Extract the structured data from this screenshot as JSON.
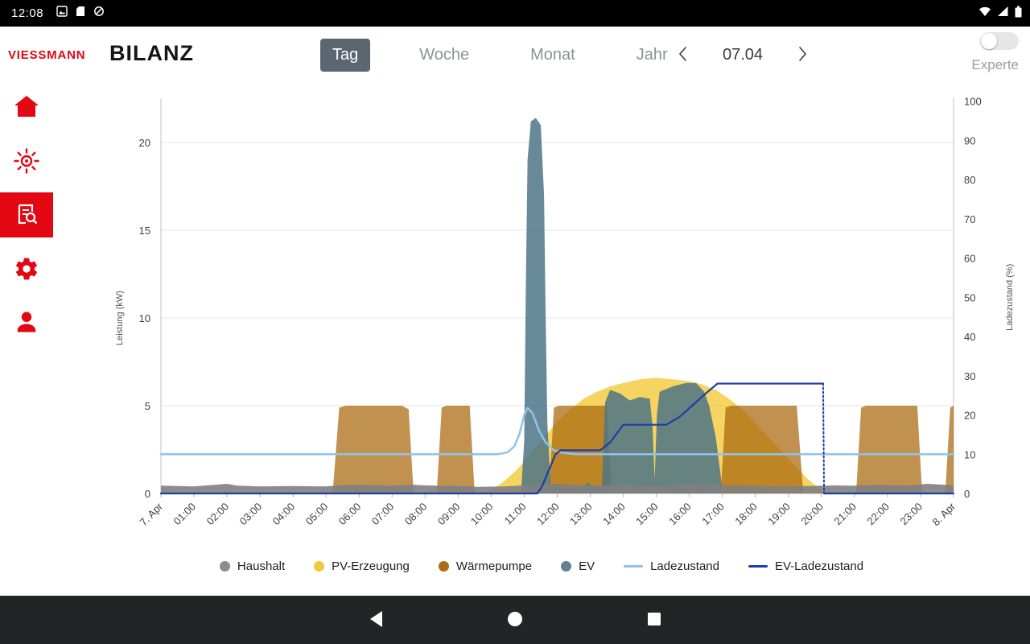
{
  "status_bar": {
    "time": "12:08",
    "left_icons": [
      "photo-icon",
      "sd-card-icon",
      "data-saver-icon"
    ],
    "right_icons": [
      "wifi-icon",
      "cellular-signal-icon",
      "battery-icon"
    ]
  },
  "header": {
    "logo_text": "VIESSMANN",
    "title": "BILANZ",
    "tabs": [
      {
        "label": "Tag",
        "selected": true
      },
      {
        "label": "Woche",
        "selected": false
      },
      {
        "label": "Monat",
        "selected": false
      },
      {
        "label": "Jahr",
        "selected": false
      }
    ],
    "date_nav": {
      "prev_icon": "chevron-left-icon",
      "date": "07.04",
      "next_icon": "chevron-right-icon"
    },
    "experte": {
      "label": "Experte",
      "enabled": false
    }
  },
  "sidebar": {
    "items": [
      {
        "name": "home",
        "selected": false
      },
      {
        "name": "solar",
        "selected": false
      },
      {
        "name": "reports",
        "selected": true
      },
      {
        "name": "settings",
        "selected": false
      },
      {
        "name": "profile",
        "selected": false
      }
    ]
  },
  "chart_data": {
    "type": "area",
    "title": "",
    "x_labels": [
      "7. Apr",
      "01:00",
      "02:00",
      "03:00",
      "04:00",
      "05:00",
      "06:00",
      "07:00",
      "08:00",
      "09:00",
      "10:00",
      "11:00",
      "12:00",
      "13:00",
      "14:00",
      "15:00",
      "16:00",
      "17:00",
      "18:00",
      "19:00",
      "20:00",
      "21:00",
      "22:00",
      "23:00",
      "8. Apr"
    ],
    "x_range_hours": [
      0,
      24
    ],
    "y_left": {
      "label": "Leistung (kW)",
      "ticks": [
        0,
        5,
        10,
        15,
        20
      ],
      "max": 22.5
    },
    "y_right": {
      "label": "Ladezustand (%)",
      "ticks": [
        0,
        10,
        20,
        30,
        40,
        50,
        60,
        70,
        80,
        90,
        100
      ],
      "max": 101
    },
    "grid": "horizontal-left-axis-only",
    "series": [
      {
        "name": "PV-Erzeugung",
        "unit": "kW",
        "axis": "left",
        "kind": "area",
        "color": "#f3c93a",
        "opacity": 0.8,
        "points": [
          [
            0,
            0
          ],
          [
            9.6,
            0
          ],
          [
            10,
            0.2
          ],
          [
            10.4,
            0.7
          ],
          [
            10.8,
            1.4
          ],
          [
            11.2,
            2.3
          ],
          [
            11.6,
            3.2
          ],
          [
            12,
            4.1
          ],
          [
            12.4,
            4.8
          ],
          [
            12.8,
            5.4
          ],
          [
            13.2,
            5.8
          ],
          [
            13.6,
            6.1
          ],
          [
            14,
            6.3
          ],
          [
            14.5,
            6.5
          ],
          [
            15,
            6.6
          ],
          [
            15.5,
            6.5
          ],
          [
            16,
            6.4
          ],
          [
            16.4,
            6.2
          ],
          [
            16.8,
            5.9
          ],
          [
            17.2,
            5.4
          ],
          [
            17.6,
            4.8
          ],
          [
            18,
            4.0
          ],
          [
            18.4,
            3.2
          ],
          [
            18.8,
            2.4
          ],
          [
            19.2,
            1.6
          ],
          [
            19.6,
            0.8
          ],
          [
            20,
            0.2
          ],
          [
            20.3,
            0
          ],
          [
            24,
            0
          ]
        ]
      },
      {
        "name": "Wärmepumpe",
        "unit": "kW",
        "axis": "left",
        "kind": "area",
        "color": "#a9660d",
        "opacity": 0.72,
        "points": [
          [
            0,
            0
          ],
          [
            5.2,
            0
          ],
          [
            5.4,
            4.9
          ],
          [
            5.6,
            5
          ],
          [
            7.3,
            5
          ],
          [
            7.5,
            4.8
          ],
          [
            7.65,
            0
          ],
          [
            8.35,
            0
          ],
          [
            8.5,
            4.9
          ],
          [
            8.65,
            5
          ],
          [
            9.35,
            5
          ],
          [
            9.5,
            0
          ],
          [
            11.75,
            0
          ],
          [
            11.9,
            4.9
          ],
          [
            12.05,
            5
          ],
          [
            13.5,
            5
          ],
          [
            13.65,
            0
          ],
          [
            16.95,
            0
          ],
          [
            17.1,
            4.9
          ],
          [
            17.25,
            5
          ],
          [
            19.25,
            5
          ],
          [
            19.45,
            0
          ],
          [
            21.05,
            0
          ],
          [
            21.2,
            4.9
          ],
          [
            21.35,
            5
          ],
          [
            22.9,
            5
          ],
          [
            23.05,
            0
          ],
          [
            23.75,
            0
          ],
          [
            23.9,
            4.9
          ],
          [
            24,
            5
          ]
        ]
      },
      {
        "name": "EV",
        "unit": "kW",
        "axis": "left",
        "kind": "area",
        "color": "#4e7486",
        "opacity": 0.85,
        "points": [
          [
            0,
            0
          ],
          [
            10.9,
            0
          ],
          [
            11.0,
            3
          ],
          [
            11.05,
            12
          ],
          [
            11.1,
            19
          ],
          [
            11.2,
            21.2
          ],
          [
            11.35,
            21.4
          ],
          [
            11.5,
            21.0
          ],
          [
            11.6,
            17
          ],
          [
            11.65,
            10
          ],
          [
            11.7,
            4
          ],
          [
            11.8,
            0.5
          ],
          [
            12.2,
            0.3
          ],
          [
            12.8,
            0.3
          ],
          [
            12.9,
            0.6
          ],
          [
            13.1,
            0.4
          ],
          [
            13.35,
            0.4
          ],
          [
            13.45,
            5.2
          ],
          [
            13.6,
            5.9
          ],
          [
            13.9,
            5.7
          ],
          [
            14.2,
            5.3
          ],
          [
            14.5,
            5.5
          ],
          [
            14.8,
            5.4
          ],
          [
            14.88,
            4
          ],
          [
            14.95,
            0.8
          ],
          [
            15.02,
            4.5
          ],
          [
            15.1,
            5.8
          ],
          [
            15.5,
            6.1
          ],
          [
            15.9,
            6.3
          ],
          [
            16.2,
            6.3
          ],
          [
            16.45,
            5.8
          ],
          [
            16.6,
            5.0
          ],
          [
            16.8,
            3.2
          ],
          [
            16.95,
            1.0
          ],
          [
            17.0,
            0
          ],
          [
            24,
            0
          ]
        ]
      },
      {
        "name": "Haushalt",
        "unit": "kW",
        "axis": "left",
        "kind": "area",
        "color": "#7f7f7f",
        "opacity": 0.9,
        "points": [
          [
            0,
            0.45
          ],
          [
            1,
            0.4
          ],
          [
            2,
            0.55
          ],
          [
            2.3,
            0.45
          ],
          [
            3,
            0.4
          ],
          [
            4,
            0.42
          ],
          [
            5,
            0.4
          ],
          [
            5.5,
            0.48
          ],
          [
            6,
            0.5
          ],
          [
            7,
            0.44
          ],
          [
            7.6,
            0.5
          ],
          [
            8,
            0.46
          ],
          [
            9,
            0.42
          ],
          [
            9.6,
            0.38
          ],
          [
            10.4,
            0.4
          ],
          [
            11,
            0.46
          ],
          [
            11.6,
            0.52
          ],
          [
            12,
            0.55
          ],
          [
            12.6,
            0.48
          ],
          [
            13.2,
            0.44
          ],
          [
            14,
            0.5
          ],
          [
            14.6,
            0.44
          ],
          [
            15.2,
            0.46
          ],
          [
            16,
            0.55
          ],
          [
            16.6,
            0.5
          ],
          [
            17.2,
            0.46
          ],
          [
            18,
            0.44
          ],
          [
            18.8,
            0.4
          ],
          [
            19.6,
            0.42
          ],
          [
            20.4,
            0.46
          ],
          [
            21,
            0.44
          ],
          [
            21.8,
            0.5
          ],
          [
            22.6,
            0.44
          ],
          [
            23.2,
            0.55
          ],
          [
            23.7,
            0.5
          ],
          [
            24,
            0.46
          ]
        ]
      },
      {
        "name": "Ladezustand",
        "unit": "%",
        "axis": "right",
        "kind": "line",
        "color": "#8fc3ec",
        "width": 2.5,
        "points": [
          [
            0,
            10
          ],
          [
            10.2,
            10
          ],
          [
            10.5,
            10.5
          ],
          [
            10.7,
            12
          ],
          [
            10.85,
            15
          ],
          [
            11.0,
            20
          ],
          [
            11.1,
            21.8
          ],
          [
            11.25,
            20.5
          ],
          [
            11.45,
            16
          ],
          [
            11.65,
            13
          ],
          [
            11.9,
            11
          ],
          [
            12.2,
            10.3
          ],
          [
            12.6,
            10
          ],
          [
            24,
            10
          ]
        ]
      },
      {
        "name": "EV-Ladezustand",
        "unit": "%",
        "axis": "right",
        "kind": "line",
        "color": "#1e3da5",
        "width": 2.2,
        "points": [
          [
            0,
            0
          ],
          [
            11.4,
            0
          ],
          [
            11.55,
            2
          ],
          [
            11.75,
            6
          ],
          [
            11.95,
            10
          ],
          [
            12.1,
            11
          ],
          [
            13.3,
            11
          ],
          [
            13.6,
            13
          ],
          [
            14.0,
            17.5
          ],
          [
            15.3,
            17.5
          ],
          [
            15.7,
            19.5
          ],
          [
            16.1,
            22.5
          ],
          [
            16.5,
            25.5
          ],
          [
            16.85,
            28
          ],
          [
            20.05,
            28
          ]
        ]
      },
      {
        "name": "EV-Ladezustand",
        "unit": "%",
        "axis": "right",
        "kind": "line",
        "color": "#1e3da5",
        "width": 2.0,
        "dash": "2 3",
        "points": [
          [
            20.05,
            28
          ],
          [
            20.08,
            0
          ]
        ]
      },
      {
        "name": "EV-Ladezustand",
        "unit": "%",
        "axis": "right",
        "kind": "line",
        "color": "#1e3da5",
        "width": 2.2,
        "points": [
          [
            20.08,
            0
          ],
          [
            24,
            0
          ]
        ]
      }
    ]
  },
  "legend": [
    {
      "label": "Haushalt",
      "color": "#8c8c8c",
      "swatch": "dot"
    },
    {
      "label": "PV-Erzeugung",
      "color": "#f2c73e",
      "swatch": "dot"
    },
    {
      "label": "Wärmepumpe",
      "color": "#ad6b13",
      "swatch": "dot"
    },
    {
      "label": "EV",
      "color": "#62828f",
      "swatch": "dot"
    },
    {
      "label": "Ladezustand",
      "color": "#8fc3ec",
      "swatch": "line"
    },
    {
      "label": "EV-Ladezustand",
      "color": "#1e3da5",
      "swatch": "line"
    }
  ],
  "nav_bar": {
    "buttons": [
      "back",
      "home",
      "recents"
    ]
  }
}
